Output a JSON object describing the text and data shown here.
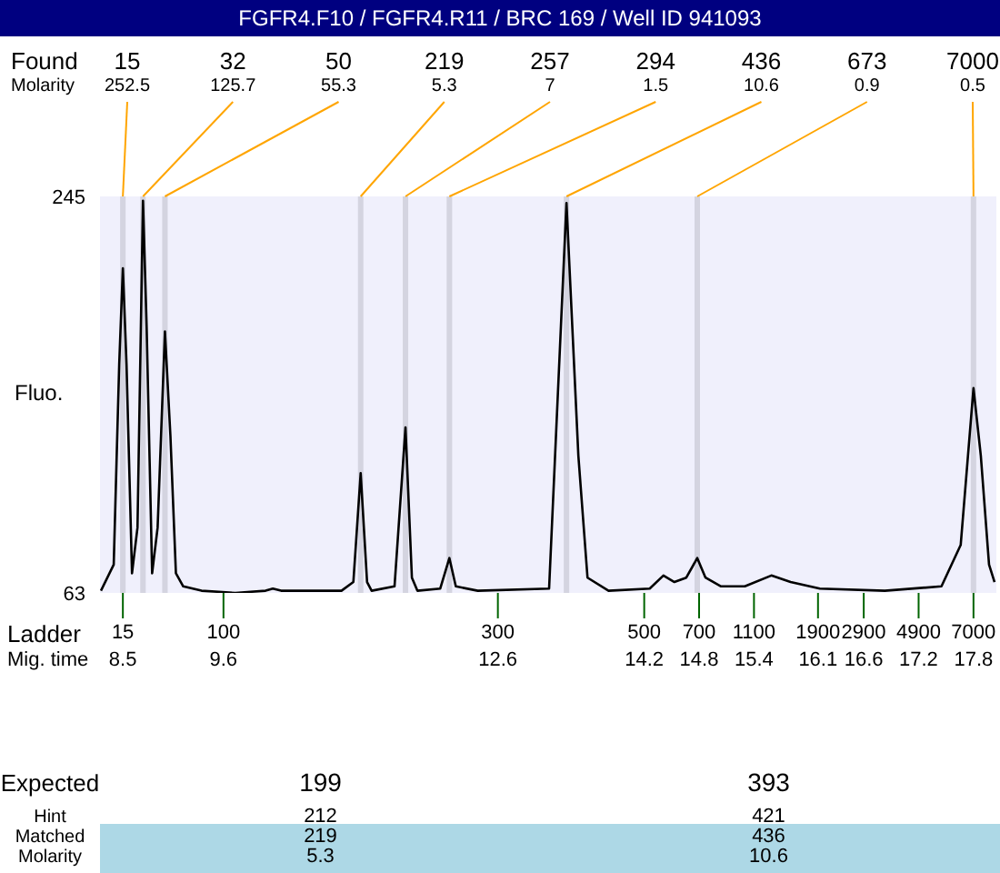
{
  "chart_data": {
    "type": "line",
    "title": "FGFR4.F10 / FGFR4.R11 / BRC 169 / Well ID 941093",
    "ylabel": "Fluo.",
    "xlabel": "Mig. time",
    "x": [
      8.26,
      8.4,
      8.46,
      8.5,
      8.54,
      8.6,
      8.66,
      8.72,
      8.76,
      8.82,
      8.88,
      8.96,
      9.02,
      9.08,
      9.16,
      9.36,
      9.73,
      10.06,
      10.14,
      10.23,
      10.89,
      11.02,
      11.1,
      11.17,
      11.22,
      11.47,
      11.59,
      11.66,
      11.72,
      11.97,
      12.07,
      12.14,
      12.38,
      13.16,
      13.35,
      13.48,
      13.58,
      13.81,
      14.26,
      14.41,
      14.53,
      14.66,
      14.78,
      14.87,
      15.04,
      15.3,
      15.59,
      15.8,
      16.12,
      16.83,
      17.45,
      17.66,
      17.8,
      17.88,
      17.97,
      18.03
    ],
    "values": [
      64,
      76,
      168,
      212,
      168,
      72,
      93,
      243,
      185,
      72,
      93,
      183,
      135,
      72,
      66,
      64,
      63,
      64,
      65,
      64,
      64,
      68,
      118,
      68,
      64,
      66,
      139,
      70,
      64,
      65,
      79,
      66,
      64,
      65,
      242,
      126,
      70,
      64,
      65,
      71,
      68,
      70,
      79,
      70,
      66,
      66,
      71,
      68,
      65,
      64,
      66,
      85,
      157,
      126,
      76,
      68
    ],
    "color": "#000000",
    "xlim": [
      8.25,
      18.05
    ],
    "ylim": [
      63,
      245
    ],
    "yticks": [
      63,
      245
    ],
    "xticks": [
      8.5,
      9.6,
      12.6,
      14.2,
      14.8,
      15.4,
      16.1,
      16.6,
      17.2,
      17.8
    ],
    "bands": [
      {
        "axis": "x",
        "from": 8.47,
        "to": 8.53,
        "color": "#d4d4e0"
      },
      {
        "axis": "x",
        "from": 8.69,
        "to": 8.75,
        "color": "#d4d4e0"
      },
      {
        "axis": "x",
        "from": 8.93,
        "to": 8.99,
        "color": "#d4d4e0"
      },
      {
        "axis": "x",
        "from": 11.07,
        "to": 11.13,
        "color": "#d4d4e0"
      },
      {
        "axis": "x",
        "from": 11.56,
        "to": 11.62,
        "color": "#d4d4e0"
      },
      {
        "axis": "x",
        "from": 12.04,
        "to": 12.1,
        "color": "#d4d4e0"
      },
      {
        "axis": "x",
        "from": 13.32,
        "to": 13.38,
        "color": "#d4d4e0"
      },
      {
        "axis": "x",
        "from": 14.75,
        "to": 14.81,
        "color": "#d4d4e0"
      },
      {
        "axis": "x",
        "from": 17.77,
        "to": 17.83,
        "color": "#d4d4e0"
      }
    ],
    "annotations": [
      "Found",
      "Molarity",
      "15",
      "252.5",
      "32",
      "125.7",
      "50",
      "55.3",
      "219",
      "5.3",
      "257",
      "7",
      "294",
      "1.5",
      "436",
      "10.6",
      "673",
      "0.9",
      "7000",
      "0.5",
      "Expected",
      "Hint",
      "Matched",
      "Molarity",
      "199",
      "212",
      "219",
      "5.3",
      "393",
      "421",
      "436",
      "10.6",
      "Ladder",
      "15",
      "100",
      "300",
      "500",
      "700",
      "1100",
      "1900",
      "2900",
      "4900",
      "7000"
    ]
  }
}
